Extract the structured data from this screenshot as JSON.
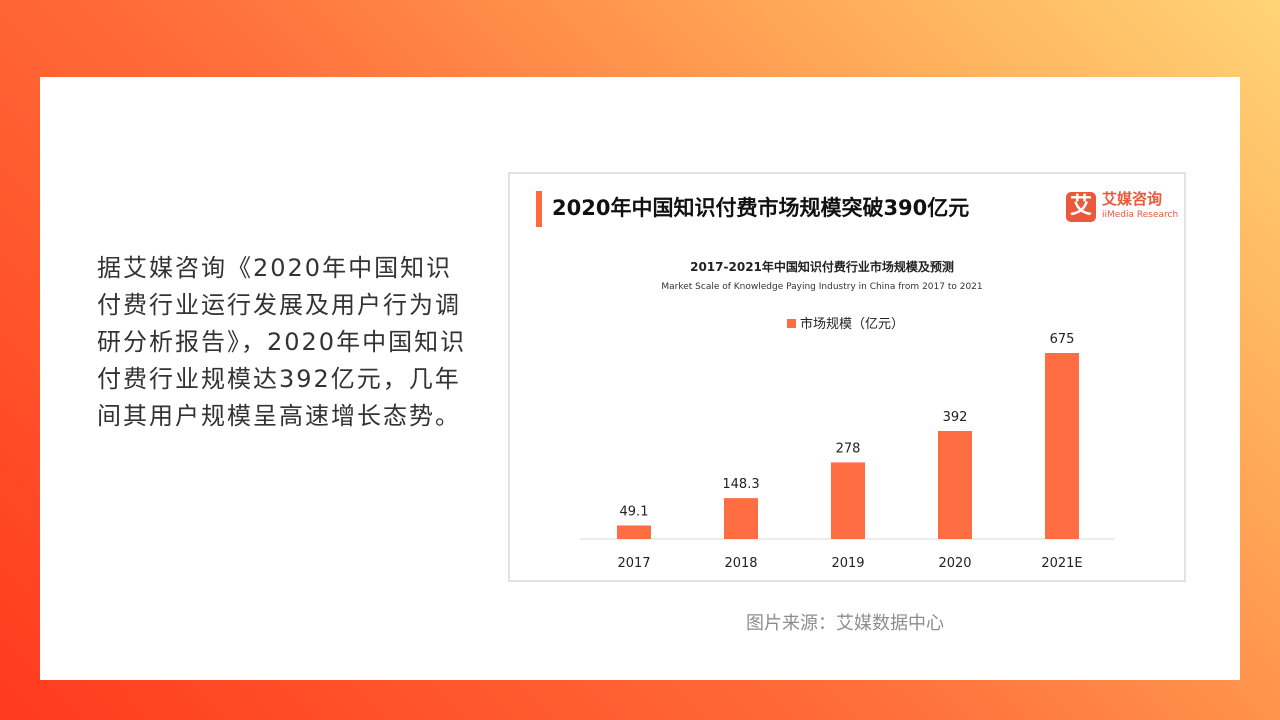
{
  "body_text": "据艾媒咨询《2020年中国知识付费行业运行发展及用户行为调研分析报告》，2020年中国知识付费行业规模达392亿元，几年间其用户规模呈高速增长态势。",
  "headline": "2020年中国知识付费市场规模突破390亿元",
  "logo": {
    "mark": "艾",
    "name_cn": "艾媒咨询",
    "name_en": "iiMedia Research"
  },
  "caption": "图片来源：艾媒数据中心",
  "colors": {
    "accent": "#ff6a3d",
    "bar": "#ff6d43"
  },
  "chart_data": {
    "type": "bar",
    "title": "2017-2021年中国知识付费行业市场规模及预测",
    "subtitle": "Market Scale of Knowledge Paying  Industry  in China from 2017 to 2021",
    "categories": [
      "2017",
      "2018",
      "2019",
      "2020",
      "2021E"
    ],
    "series": [
      {
        "name": "市场规模（亿元）",
        "values": [
          49.1,
          148.3,
          278,
          392,
          675
        ]
      }
    ],
    "value_labels": [
      "49.1",
      "148.3",
      "278",
      "392",
      "675"
    ],
    "ylim": [
      0,
      700
    ],
    "grid": false,
    "legend_position": "top-center",
    "data_labels": true
  }
}
